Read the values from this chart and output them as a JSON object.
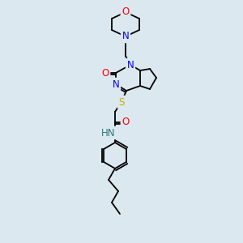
{
  "background_color": "#dce8f0",
  "atom_colors": {
    "N": "#0000ff",
    "O": "#ff0000",
    "S": "#ccaa00",
    "C": "#000000",
    "H": "#2a7a7a"
  },
  "bond_color": "#000000",
  "figure_size": [
    3.0,
    3.0
  ],
  "dpi": 100
}
